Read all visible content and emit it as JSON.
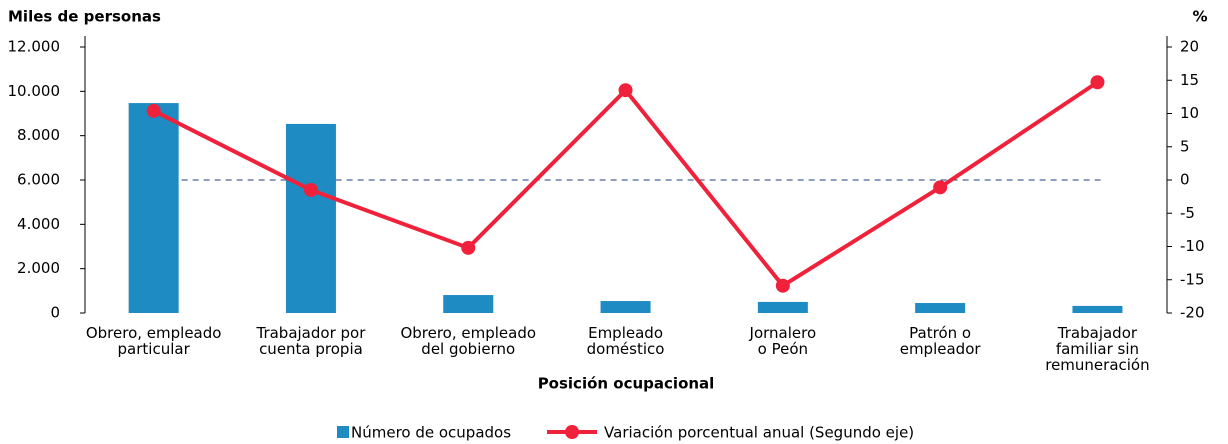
{
  "chart_data": {
    "type": "bar-line",
    "y_axis_label": "Miles de personas",
    "y2_axis_label": "%",
    "x_axis_label": "Posición ocupacional",
    "categories": [
      "Obrero, empleado\nparticular",
      "Trabajador por\ncuenta propia",
      "Obrero, empleado\ndel gobierno",
      "Empleado\ndoméstico",
      "Jornalero\no Peón",
      "Patrón o\nempleador",
      "Trabajador\nfamiliar sin\nremuneración"
    ],
    "series": [
      {
        "name": "Número de ocupados",
        "type": "bar",
        "color": "#1e8bc3",
        "values": [
          9470,
          8530,
          810,
          540,
          500,
          450,
          320
        ]
      },
      {
        "name": "Variación porcentual anual (Segundo eje)",
        "type": "line",
        "axis": "y2",
        "color": "#f0213a",
        "values": [
          10.4,
          -1.5,
          -10.2,
          13.5,
          -15.9,
          -1.1,
          14.7
        ]
      }
    ],
    "ylim": [
      0,
      12000
    ],
    "yticks": [
      0,
      {
        "value": 2000,
        "label": "2.000"
      },
      {
        "value": 4000,
        "label": "4.000"
      },
      {
        "value": 6000,
        "label": "6.000"
      },
      {
        "value": 8000,
        "label": "8.000"
      },
      {
        "value": 10000,
        "label": "10.000"
      },
      {
        "value": 12000,
        "label": "12.000"
      }
    ],
    "y2lim": [
      -20,
      20
    ],
    "y2ticks": [
      -20,
      -15,
      -10,
      -5,
      0,
      5,
      10,
      15,
      20
    ],
    "reference_line": {
      "axis": "y2",
      "value": 0,
      "color": "#1f3d7a",
      "dashed": true
    },
    "legend": "bottom",
    "grid": false
  }
}
